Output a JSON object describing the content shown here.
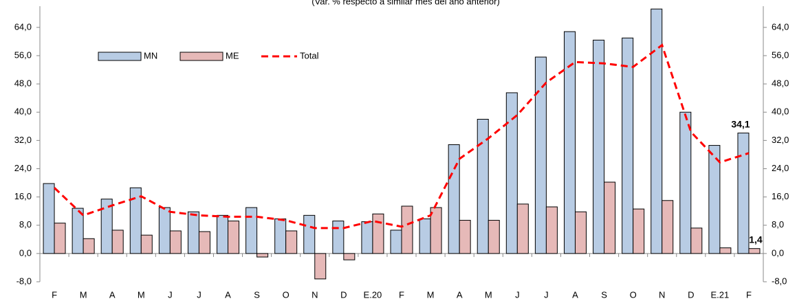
{
  "chart_data": {
    "type": "bar-line",
    "subtitle": "(Var. % respecto a similar mes del año anterior)",
    "categories": [
      "F",
      "M",
      "A",
      "M",
      "J",
      "J",
      "A",
      "S",
      "O",
      "N",
      "D",
      "E.20",
      "F",
      "M",
      "A",
      "M",
      "J",
      "J",
      "A",
      "S",
      "O",
      "N",
      "D",
      "E.21",
      "F"
    ],
    "series": [
      {
        "name": "MN",
        "type": "bar",
        "color": "#b8cce4",
        "values": [
          19.8,
          12.8,
          15.4,
          18.6,
          13.0,
          11.8,
          10.8,
          13.0,
          9.8,
          10.8,
          9.2,
          9.0,
          6.6,
          9.8,
          30.8,
          38.0,
          45.5,
          55.6,
          62.8,
          60.4,
          61.0,
          69.2,
          40.0,
          30.6,
          34.1
        ],
        "value_labels": [
          null,
          null,
          null,
          null,
          null,
          null,
          null,
          null,
          null,
          null,
          null,
          null,
          null,
          null,
          null,
          null,
          null,
          null,
          null,
          null,
          null,
          null,
          null,
          null,
          "34,1"
        ]
      },
      {
        "name": "ME",
        "type": "bar",
        "color": "#e6b9b8",
        "values": [
          8.6,
          4.2,
          6.6,
          5.2,
          6.4,
          6.2,
          9.2,
          -1.0,
          6.4,
          -7.2,
          -1.8,
          11.2,
          13.4,
          13.0,
          9.4,
          9.4,
          14.0,
          13.2,
          11.8,
          20.2,
          12.6,
          15.0,
          7.2,
          1.6,
          1.4
        ],
        "value_labels": [
          null,
          null,
          null,
          null,
          null,
          null,
          null,
          null,
          null,
          null,
          null,
          null,
          null,
          null,
          null,
          null,
          null,
          null,
          null,
          null,
          null,
          null,
          null,
          null,
          "1,4"
        ]
      },
      {
        "name": "Total",
        "type": "line",
        "color": "#ff0000",
        "values": [
          18.6,
          10.8,
          13.6,
          16.2,
          11.8,
          10.8,
          10.4,
          10.4,
          9.4,
          7.2,
          7.2,
          9.2,
          7.6,
          10.8,
          26.8,
          32.6,
          39.2,
          48.4,
          54.2,
          53.8,
          52.8,
          59.0,
          34.4,
          25.8,
          28.4
        ]
      }
    ],
    "ylim": [
      -8,
      70
    ],
    "yticks": [
      {
        "value": -8,
        "label": "-8,0"
      },
      {
        "value": 0,
        "label": "0,0"
      },
      {
        "value": 8,
        "label": "8,0"
      },
      {
        "value": 16,
        "label": "16,0"
      },
      {
        "value": 24,
        "label": "24,0"
      },
      {
        "value": 32,
        "label": "32,0"
      },
      {
        "value": 40,
        "label": "40,0"
      },
      {
        "value": 48,
        "label": "48,0"
      },
      {
        "value": 56,
        "label": "56,0"
      },
      {
        "value": 64,
        "label": "64,0"
      }
    ],
    "y2lim": [
      -8,
      70
    ],
    "y2ticks": [
      {
        "value": -8,
        "label": "-8,0"
      },
      {
        "value": 0,
        "label": "0,0"
      },
      {
        "value": 8,
        "label": "8,0"
      },
      {
        "value": 16,
        "label": "16,0"
      },
      {
        "value": 24,
        "label": "24,0"
      },
      {
        "value": 32,
        "label": "32,0"
      },
      {
        "value": 40,
        "label": "40,0"
      },
      {
        "value": 48,
        "label": "48,0"
      },
      {
        "value": 56,
        "label": "56,0"
      },
      {
        "value": 64,
        "label": "64,0"
      }
    ]
  }
}
